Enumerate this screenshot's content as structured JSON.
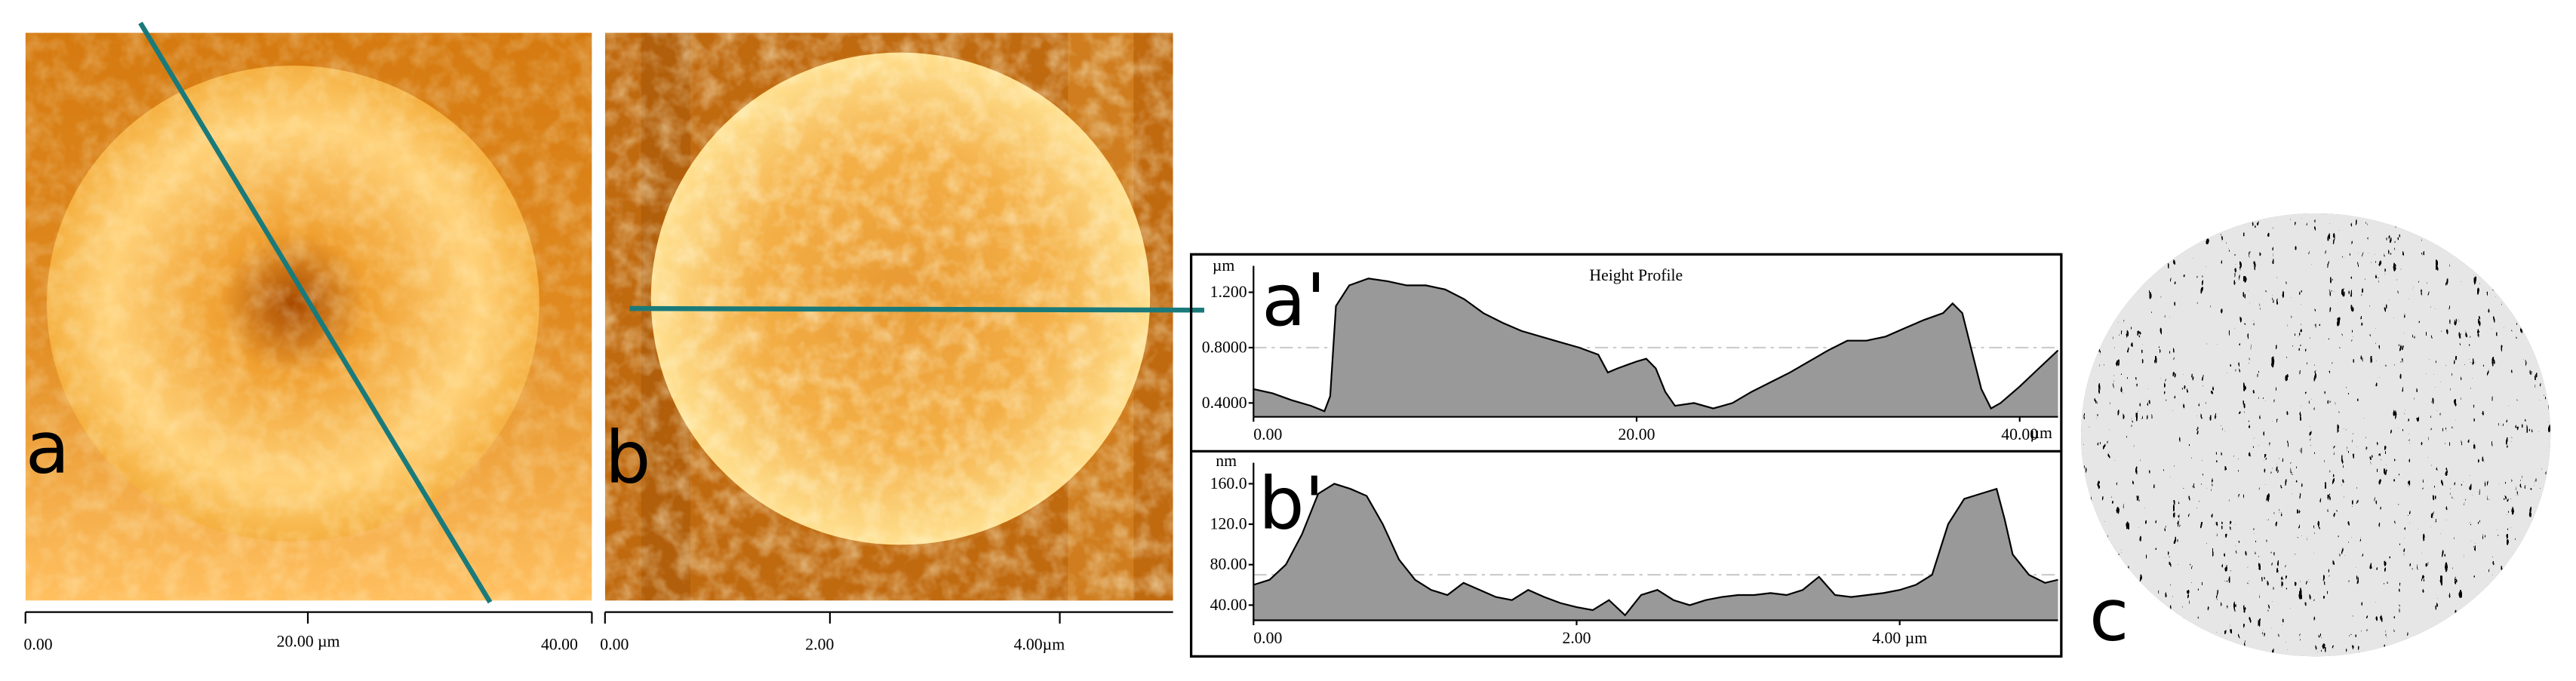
{
  "images": [
    {
      "label": "a",
      "scale_labels": [
        "0.00",
        "20.00 µm",
        "40.00"
      ]
    },
    {
      "label": "b",
      "scale_labels": [
        "0.00",
        "2.00",
        "4.00µm"
      ]
    },
    {
      "label": "c"
    }
  ],
  "chart_data": [
    {
      "type": "area",
      "title": "Height Profile",
      "panel_label": "a'",
      "y_unit": "µm",
      "x_unit": "µm",
      "color": "#999999",
      "line_color": "#000000",
      "mean_line": 0.8,
      "xlim": [
        0,
        42
      ],
      "ylim": [
        0.3,
        1.32
      ],
      "xticks": [
        {
          "value": 0,
          "label": "0.00"
        },
        {
          "value": 20,
          "label": "20.00"
        },
        {
          "value": 40,
          "label": "40.00"
        }
      ],
      "yticks": [
        {
          "value": 1.2,
          "label": "1.200"
        },
        {
          "value": 0.8,
          "label": "0.8000"
        },
        {
          "value": 0.4,
          "label": "0.4000"
        }
      ],
      "x": [
        0,
        1,
        2,
        3,
        3.7,
        4,
        4.3,
        5,
        6,
        7,
        8,
        9,
        10,
        11,
        12,
        13,
        14,
        15,
        16,
        17,
        18,
        18.5,
        19,
        20,
        20.5,
        21,
        21.5,
        22,
        23,
        24,
        25,
        26,
        27,
        28,
        29,
        30,
        31,
        32,
        33,
        34,
        35,
        36,
        36.5,
        37,
        38,
        38.5,
        39,
        40,
        41,
        42
      ],
      "values": [
        0.5,
        0.47,
        0.42,
        0.38,
        0.34,
        0.45,
        1.1,
        1.25,
        1.3,
        1.28,
        1.25,
        1.25,
        1.22,
        1.15,
        1.05,
        0.98,
        0.92,
        0.88,
        0.84,
        0.8,
        0.75,
        0.62,
        0.65,
        0.7,
        0.72,
        0.65,
        0.48,
        0.38,
        0.4,
        0.36,
        0.4,
        0.48,
        0.55,
        0.62,
        0.7,
        0.78,
        0.85,
        0.85,
        0.88,
        0.94,
        1.0,
        1.05,
        1.12,
        1.05,
        0.5,
        0.36,
        0.4,
        0.52,
        0.65,
        0.78
      ]
    },
    {
      "type": "area",
      "panel_label": "b'",
      "y_unit": "nm",
      "color": "#999999",
      "line_color": "#000000",
      "mean_line": 70,
      "xlim": [
        0,
        4.98
      ],
      "ylim": [
        25,
        171
      ],
      "xticks": [
        {
          "value": 0,
          "label": "0.00"
        },
        {
          "value": 2,
          "label": "2.00"
        },
        {
          "value": 4,
          "label": "4.00 µm"
        }
      ],
      "yticks": [
        {
          "value": 160,
          "label": "160.0"
        },
        {
          "value": 120,
          "label": "120.0"
        },
        {
          "value": 80,
          "label": "80.00"
        },
        {
          "value": 40,
          "label": "40.00"
        }
      ],
      "x": [
        0,
        0.1,
        0.2,
        0.3,
        0.4,
        0.5,
        0.6,
        0.7,
        0.8,
        0.9,
        1.0,
        1.1,
        1.2,
        1.3,
        1.4,
        1.5,
        1.6,
        1.7,
        1.8,
        1.9,
        2.0,
        2.1,
        2.2,
        2.3,
        2.4,
        2.5,
        2.6,
        2.7,
        2.8,
        2.9,
        3.0,
        3.1,
        3.2,
        3.3,
        3.4,
        3.5,
        3.6,
        3.7,
        3.8,
        3.9,
        4.0,
        4.1,
        4.2,
        4.3,
        4.4,
        4.5,
        4.6,
        4.65,
        4.7,
        4.8,
        4.9,
        4.98
      ],
      "values": [
        60,
        65,
        80,
        110,
        150,
        160,
        155,
        148,
        120,
        85,
        65,
        55,
        50,
        62,
        55,
        48,
        45,
        55,
        48,
        42,
        38,
        35,
        45,
        30,
        50,
        55,
        45,
        40,
        45,
        48,
        50,
        50,
        52,
        50,
        55,
        68,
        50,
        48,
        50,
        52,
        55,
        60,
        70,
        120,
        145,
        150,
        155,
        125,
        90,
        70,
        62,
        65
      ]
    }
  ]
}
